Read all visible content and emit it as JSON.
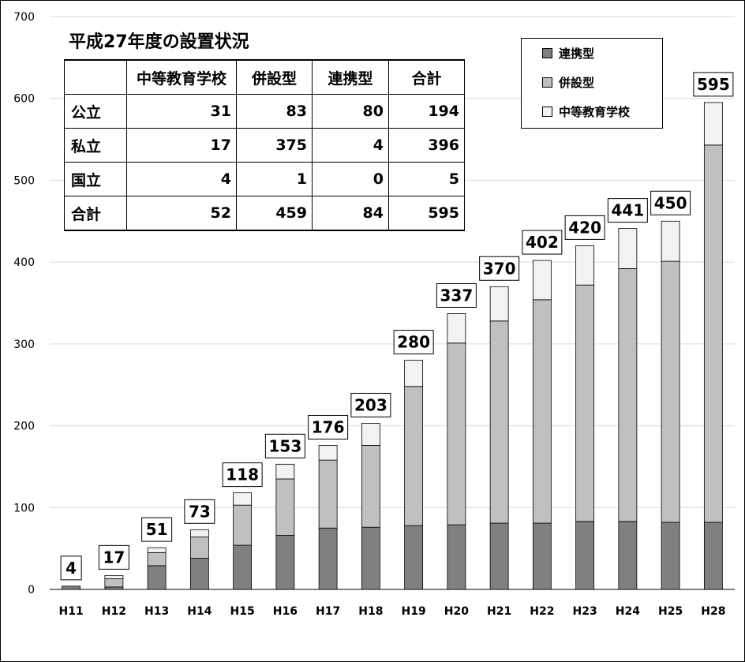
{
  "chart_data": {
    "type": "bar",
    "stacked": true,
    "categories": [
      "H11",
      "H12",
      "H13",
      "H14",
      "H15",
      "H16",
      "H17",
      "H18",
      "H19",
      "H20",
      "H21",
      "H22",
      "H23",
      "H24",
      "H25",
      "H28"
    ],
    "series": [
      {
        "name": "連携型",
        "color": "#808080",
        "values": [
          4,
          3,
          29,
          38,
          54,
          66,
          75,
          76,
          78,
          79,
          81,
          81,
          83,
          83,
          82,
          82
        ]
      },
      {
        "name": "併設型",
        "color": "#c0c0c0",
        "values": [
          0,
          10,
          16,
          26,
          49,
          69,
          83,
          100,
          170,
          222,
          247,
          273,
          289,
          309,
          319,
          461
        ]
      },
      {
        "name": "中等教育学校",
        "color": "#f2f2f2",
        "values": [
          0,
          4,
          6,
          9,
          15,
          18,
          18,
          27,
          32,
          36,
          42,
          48,
          48,
          49,
          49,
          52
        ]
      }
    ],
    "totals": [
      "4",
      "17",
      "51",
      "73",
      "118",
      "153",
      "176",
      "203",
      "280",
      "337",
      "370",
      "402",
      "420",
      "441",
      "450",
      "595"
    ],
    "ylim": [
      0,
      700
    ],
    "yticks": [
      "0",
      "100",
      "200",
      "300",
      "400",
      "500",
      "600",
      "700"
    ],
    "grid": true,
    "legend_position": "top-right"
  },
  "table": {
    "title": "平成27年度の設置状況",
    "headers": [
      "",
      "中等教育学校",
      "併設型",
      "連携型",
      "合計"
    ],
    "rows": [
      [
        "公立",
        "31",
        "83",
        "80",
        "194"
      ],
      [
        "私立",
        "17",
        "375",
        "4",
        "396"
      ],
      [
        "国立",
        "4",
        "1",
        "0",
        "5"
      ],
      [
        "合計",
        "52",
        "459",
        "84",
        "595"
      ]
    ]
  }
}
